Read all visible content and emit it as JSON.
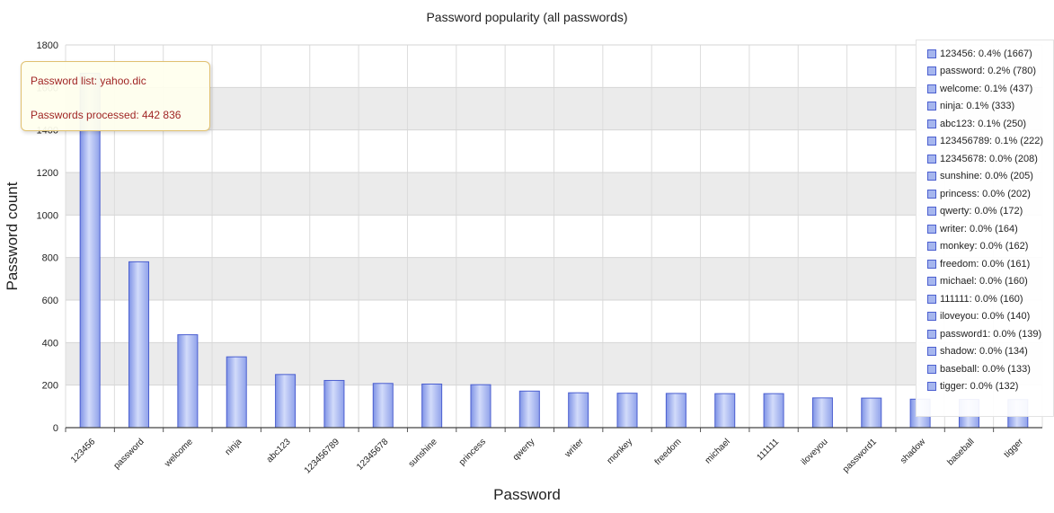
{
  "chart_data": {
    "type": "bar",
    "title": "Password popularity (all passwords)",
    "xlabel": "Password",
    "ylabel": "Password count",
    "ylim": [
      0,
      1800
    ],
    "yticks": [
      0,
      200,
      400,
      600,
      800,
      1000,
      1200,
      1400,
      1600,
      1800
    ],
    "grid": true,
    "categories": [
      "123456",
      "password",
      "welcome",
      "ninja",
      "abc123",
      "123456789",
      "12345678",
      "sunshine",
      "princess",
      "qwerty",
      "writer",
      "monkey",
      "freedom",
      "michael",
      "111111",
      "iloveyou",
      "password1",
      "shadow",
      "baseball",
      "tigger"
    ],
    "values": [
      1667,
      780,
      437,
      333,
      250,
      222,
      208,
      205,
      202,
      172,
      164,
      162,
      161,
      160,
      160,
      140,
      139,
      134,
      133,
      132
    ],
    "legend_placement": "right",
    "legend": [
      "123456:  0.4% (1667)",
      "password:  0.2% (780)",
      "welcome:  0.1% (437)",
      "ninja:  0.1% (333)",
      "abc123:  0.1% (250)",
      "123456789:  0.1% (222)",
      "12345678:  0.0% (208)",
      "sunshine:  0.0% (205)",
      "princess:  0.0% (202)",
      "qwerty:  0.0% (172)",
      "writer:  0.0% (164)",
      "monkey:  0.0% (162)",
      "freedom:  0.0% (161)",
      "michael:  0.0% (160)",
      "111111:  0.0% (160)",
      "iloveyou:  0.0% (140)",
      "password1:  0.0% (139)",
      "shadow:  0.0% (134)",
      "baseball:  0.0% (133)",
      "tigger:  0.0% (132)"
    ],
    "colors": {
      "bar_fill": "#a6b6ee",
      "bar_stroke": "#4b5fd0",
      "band": "#ebebeb",
      "tooltip_text": "#a02525"
    }
  },
  "tooltip": {
    "line1": "Password list: yahoo.dic",
    "line2": "Passwords processed: 442 836"
  }
}
